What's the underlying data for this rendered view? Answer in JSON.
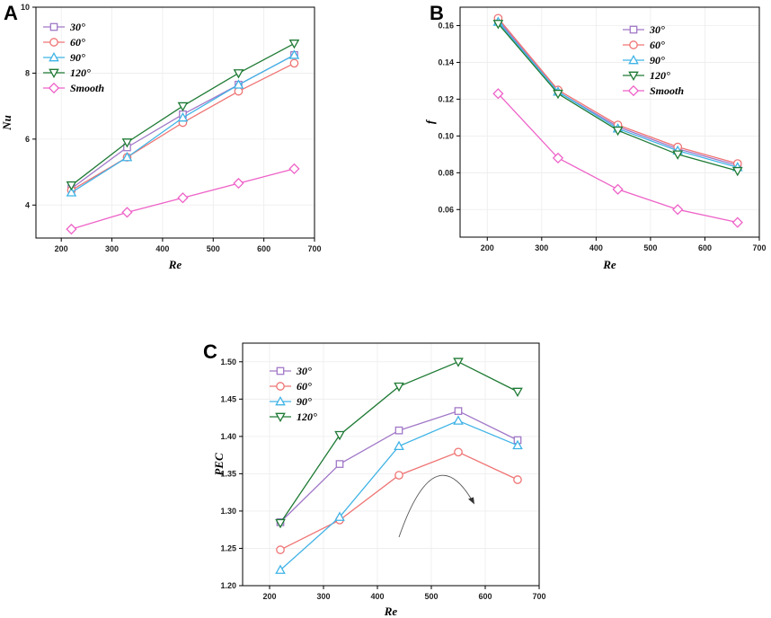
{
  "chart_data": [
    {
      "panel": "A",
      "type": "line",
      "xlabel": "Re",
      "ylabel": "Nu",
      "xlim": [
        150,
        700
      ],
      "ylim": [
        3,
        10
      ],
      "xticks": [
        200,
        300,
        400,
        500,
        600,
        700
      ],
      "yticks": [
        4,
        6,
        8,
        10
      ],
      "x": [
        220,
        330,
        440,
        550,
        660
      ],
      "legend_position": "top-left",
      "series": [
        {
          "name": "30°",
          "color": "#a178c8",
          "marker": "square",
          "values": [
            4.5,
            5.75,
            6.75,
            7.65,
            8.55
          ]
        },
        {
          "name": "60°",
          "color": "#ef7474",
          "marker": "circle",
          "values": [
            4.45,
            5.45,
            6.5,
            7.45,
            8.3
          ]
        },
        {
          "name": "90°",
          "color": "#3fb3e6",
          "marker": "triangle-up",
          "values": [
            4.38,
            5.45,
            6.65,
            7.65,
            8.55
          ]
        },
        {
          "name": "120°",
          "color": "#1e7a34",
          "marker": "triangle-down",
          "values": [
            4.6,
            5.9,
            7.0,
            8.0,
            8.9
          ]
        },
        {
          "name": "Smooth",
          "color": "#ee62c8",
          "marker": "diamond",
          "values": [
            3.27,
            3.78,
            4.22,
            4.66,
            5.1
          ]
        }
      ]
    },
    {
      "panel": "B",
      "type": "line",
      "xlabel": "Re",
      "ylabel": "f",
      "xlim": [
        150,
        700
      ],
      "ylim": [
        0.045,
        0.17
      ],
      "xticks": [
        200,
        300,
        400,
        500,
        600,
        700
      ],
      "yticks": [
        0.06,
        0.08,
        0.1,
        0.12,
        0.14,
        0.16
      ],
      "ytick_labels": [
        "0.06",
        "0.08",
        "0.10",
        "0.12",
        "0.14",
        "0.16"
      ],
      "x": [
        220,
        330,
        440,
        550,
        660
      ],
      "legend_position": "top-right",
      "series": [
        {
          "name": "30°",
          "color": "#a178c8",
          "marker": "square",
          "values": [
            0.163,
            0.124,
            0.105,
            0.093,
            0.084
          ]
        },
        {
          "name": "60°",
          "color": "#ef7474",
          "marker": "circle",
          "values": [
            0.164,
            0.125,
            0.106,
            0.094,
            0.085
          ]
        },
        {
          "name": "90°",
          "color": "#3fb3e6",
          "marker": "triangle-up",
          "values": [
            0.162,
            0.124,
            0.104,
            0.092,
            0.083
          ]
        },
        {
          "name": "120°",
          "color": "#1e7a34",
          "marker": "triangle-down",
          "values": [
            0.161,
            0.123,
            0.103,
            0.09,
            0.081
          ]
        },
        {
          "name": "Smooth",
          "color": "#ee62c8",
          "marker": "diamond",
          "values": [
            0.123,
            0.088,
            0.071,
            0.06,
            0.053
          ]
        }
      ]
    },
    {
      "panel": "C",
      "type": "line",
      "xlabel": "Re",
      "ylabel": "PEC",
      "xlim": [
        150,
        700
      ],
      "ylim": [
        1.2,
        1.525
      ],
      "xticks": [
        200,
        300,
        400,
        500,
        600,
        700
      ],
      "yticks": [
        1.2,
        1.25,
        1.3,
        1.35,
        1.4,
        1.45,
        1.5
      ],
      "ytick_labels": [
        "1.20",
        "1.25",
        "1.30",
        "1.35",
        "1.40",
        "1.45",
        "1.50"
      ],
      "x": [
        220,
        330,
        440,
        550,
        660
      ],
      "legend_position": "top-left",
      "annotation": "curved arrow",
      "series": [
        {
          "name": "30°",
          "color": "#a178c8",
          "marker": "square",
          "values": [
            1.285,
            1.363,
            1.408,
            1.434,
            1.395
          ]
        },
        {
          "name": "60°",
          "color": "#ef7474",
          "marker": "circle",
          "values": [
            1.248,
            1.288,
            1.348,
            1.379,
            1.342
          ]
        },
        {
          "name": "90°",
          "color": "#3fb3e6",
          "marker": "triangle-up",
          "values": [
            1.221,
            1.292,
            1.387,
            1.421,
            1.388
          ]
        },
        {
          "name": "120°",
          "color": "#1e7a34",
          "marker": "triangle-down",
          "values": [
            1.284,
            1.402,
            1.467,
            1.5,
            1.46
          ]
        }
      ]
    }
  ]
}
